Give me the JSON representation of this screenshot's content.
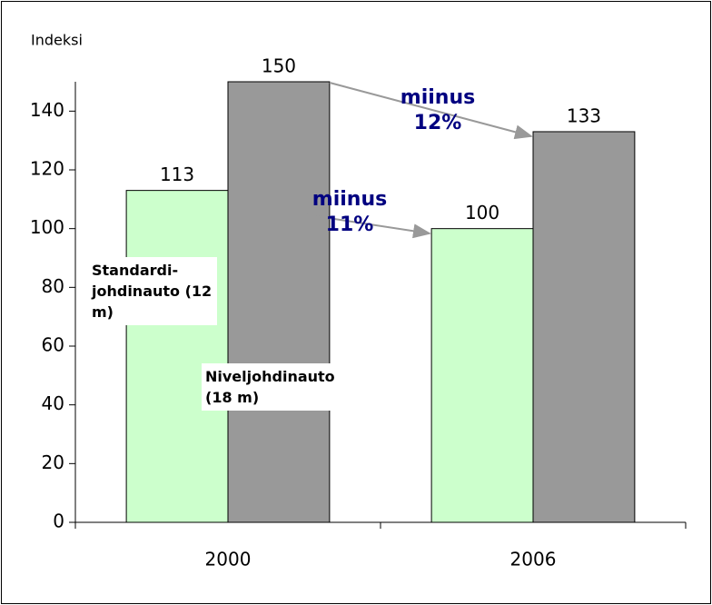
{
  "chart_data": {
    "type": "bar",
    "y_label": "Indeksi",
    "categories": [
      "2000",
      "2006"
    ],
    "series": [
      {
        "name": "Standardi-johdinauto (12 m)",
        "color": "#ccffcc",
        "values": [
          113,
          100
        ]
      },
      {
        "name": "Niveljohdinauto (18 m)",
        "color": "#999999",
        "values": [
          150,
          133
        ]
      }
    ],
    "ylim": [
      0,
      150
    ],
    "yticks": [
      0,
      20,
      40,
      60,
      80,
      100,
      120,
      140
    ],
    "annotations": [
      {
        "text": "miinus 12%"
      },
      {
        "text": "miinus 11%"
      }
    ]
  }
}
